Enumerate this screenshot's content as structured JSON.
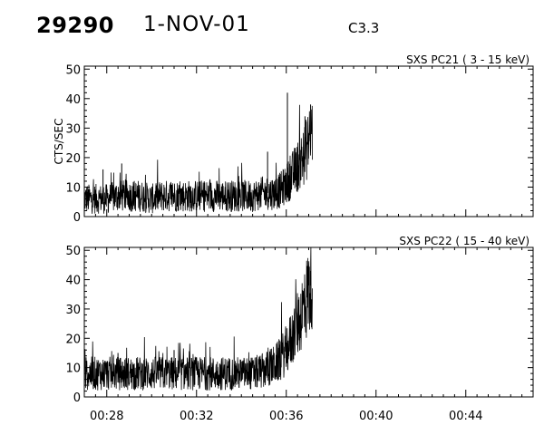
{
  "header": {
    "event_id": "29290",
    "date": "1-NOV-01",
    "flare_class": "C3.3"
  },
  "chart_data": [
    {
      "type": "line",
      "title": "SXS PC21  (  3 - 15 keV)",
      "ylabel": "CTS/SEC",
      "xlabel": "",
      "xlim": [
        "00:27",
        "00:47"
      ],
      "ylim": [
        0,
        51
      ],
      "yticks": [
        0,
        10,
        20,
        30,
        40,
        50
      ],
      "xticks": [
        "00:28",
        "00:32",
        "00:36",
        "00:40",
        "00:44"
      ],
      "show_xtick_labels": false,
      "series": [
        {
          "x": [
            "00:27:00",
            "00:27:30",
            "00:28:00",
            "00:28:30",
            "00:29:00",
            "00:29:30",
            "00:30:00",
            "00:30:30",
            "00:31:00",
            "00:31:30",
            "00:32:00",
            "00:32:30",
            "00:33:00",
            "00:33:30",
            "00:34:00",
            "00:34:30",
            "00:35:00",
            "00:35:30",
            "00:35:45",
            "00:36:00",
            "00:36:15",
            "00:36:30",
            "00:36:45",
            "00:37:00",
            "00:37:10"
          ],
          "values": [
            6,
            6,
            6,
            7,
            7,
            7,
            6,
            7,
            7,
            7,
            7,
            7,
            7,
            7,
            7,
            7,
            8,
            8,
            9,
            11,
            14,
            17,
            20,
            25,
            30
          ]
        }
      ],
      "spikes": [
        {
          "x": "00:36:03",
          "y": 42
        },
        {
          "x": "00:36:50",
          "y": 34
        },
        {
          "x": "00:37:05",
          "y": 38
        },
        {
          "x": "00:35:10",
          "y": 22
        },
        {
          "x": "00:27:50",
          "y": 16
        },
        {
          "x": "00:28:40",
          "y": 18
        }
      ]
    },
    {
      "type": "line",
      "title": "SXS PC22  ( 15 - 40 keV)",
      "ylabel": "",
      "xlabel": "",
      "xlim": [
        "00:27",
        "00:47"
      ],
      "ylim": [
        0,
        51
      ],
      "yticks": [
        0,
        10,
        20,
        30,
        40,
        50
      ],
      "xticks": [
        "00:28",
        "00:32",
        "00:36",
        "00:40",
        "00:44"
      ],
      "show_xtick_labels": true,
      "series": [
        {
          "x": [
            "00:27:00",
            "00:27:30",
            "00:28:00",
            "00:28:30",
            "00:29:00",
            "00:29:30",
            "00:30:00",
            "00:30:30",
            "00:31:00",
            "00:31:30",
            "00:32:00",
            "00:32:30",
            "00:33:00",
            "00:33:30",
            "00:34:00",
            "00:34:30",
            "00:35:00",
            "00:35:30",
            "00:35:45",
            "00:36:00",
            "00:36:15",
            "00:36:30",
            "00:36:45",
            "00:37:00",
            "00:37:10"
          ],
          "values": [
            8,
            8,
            8,
            8,
            8,
            8,
            8,
            8,
            8,
            8,
            8,
            8,
            8,
            8,
            8,
            8,
            9,
            11,
            13,
            16,
            20,
            25,
            30,
            36,
            40
          ]
        }
      ],
      "spikes": [
        {
          "x": "00:37:05",
          "y": 43
        },
        {
          "x": "00:36:55",
          "y": 38
        },
        {
          "x": "00:28:30",
          "y": 15
        },
        {
          "x": "00:31:00",
          "y": 16
        }
      ]
    }
  ]
}
